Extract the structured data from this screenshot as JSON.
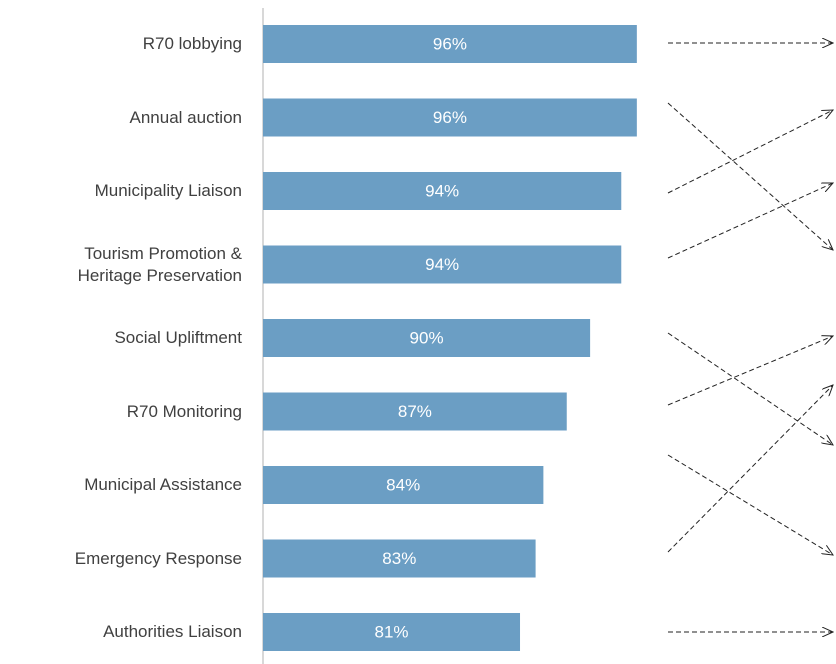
{
  "chart_data": {
    "type": "bar",
    "orientation": "horizontal",
    "categories": [
      "R70 lobbying",
      "Annual auction",
      "Municipality Liaison",
      "Tourism Promotion &\nHeritage Preservation",
      "Social Upliftment",
      "R70 Monitoring",
      "Municipal Assistance",
      "Emergency Response",
      "Authorities Liaison"
    ],
    "values": [
      96,
      96,
      94,
      94,
      90,
      87,
      84,
      83,
      81
    ],
    "value_labels": [
      "96%",
      "96%",
      "94%",
      "94%",
      "90%",
      "87%",
      "84%",
      "83%",
      "81%"
    ],
    "color": "#6b9ec4",
    "xlim": [
      48,
      100
    ]
  }
}
